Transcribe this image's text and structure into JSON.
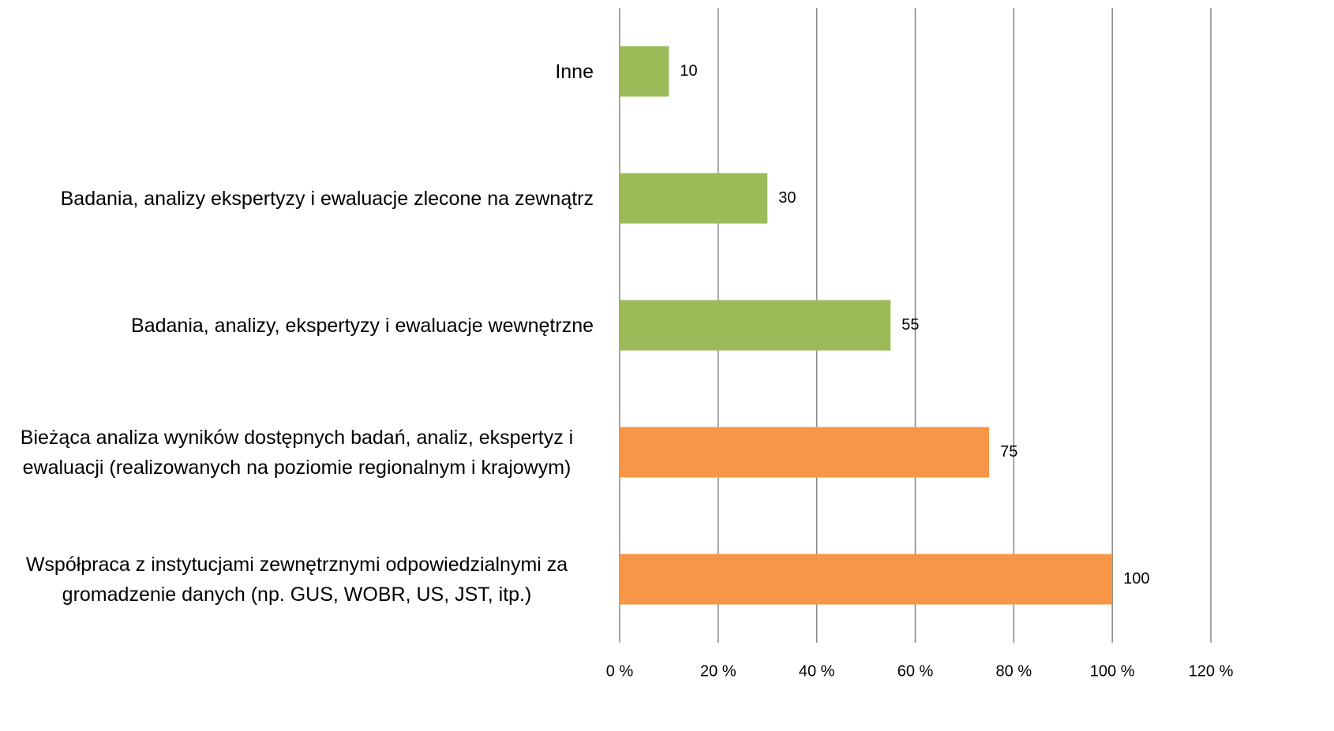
{
  "chart_data": {
    "type": "hbar",
    "categories": [
      "Inne",
      "Badania, analizy ekspertyzy i ewaluacje zlecone na zewnątrz",
      "Badania, analizy, ekspertyzy i ewaluacje wewnętrzne",
      "Bieżąca analiza wyników dostępnych badań, analiz, ekspertyz i ewaluacji (realizowanych na poziomie regionalnym i krajowym)",
      "Współpraca z instytucjami zewnętrznymi odpowiedzialnymi za gromadzenie danych  (np. GUS, WOBR, US, JST, itp.)"
    ],
    "values": [
      10,
      30,
      55,
      75,
      100
    ],
    "colors": [
      "#9bbb59",
      "#9bbb59",
      "#9bbb59",
      "#f79646",
      "#f79646"
    ],
    "xlim": [
      0,
      120
    ],
    "xticks": [
      {
        "value": 0,
        "label": "0 %"
      },
      {
        "value": 20,
        "label": "20 %"
      },
      {
        "value": 40,
        "label": "40 %"
      },
      {
        "value": 60,
        "label": "60 %"
      },
      {
        "value": 80,
        "label": "80 %"
      },
      {
        "value": 100,
        "label": "100 %"
      },
      {
        "value": 120,
        "label": "120 %"
      }
    ],
    "grid": true
  }
}
